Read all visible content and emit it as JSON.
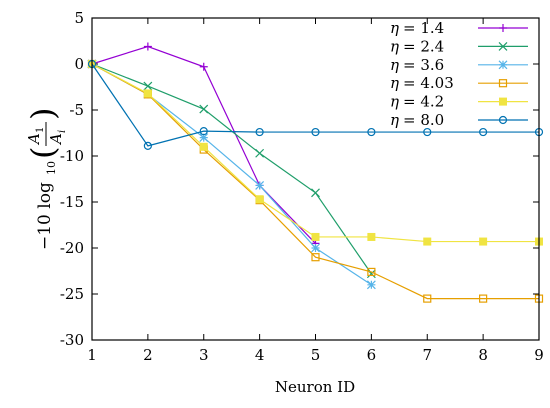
{
  "chart_data": {
    "type": "line",
    "title": "",
    "xlabel": "Neuron ID",
    "ylabel": {
      "prefix": "−10 log",
      "subscript": "10",
      "numerator": "A",
      "numerator_sub": "1",
      "denominator": "A",
      "denominator_sub": "i"
    },
    "x": [
      1,
      2,
      3,
      4,
      5,
      6,
      7,
      8,
      9
    ],
    "xlim": [
      1,
      9
    ],
    "ylim": [
      -30,
      5
    ],
    "xticks": [
      "1",
      "2",
      "3",
      "4",
      "5",
      "6",
      "7",
      "8",
      "9"
    ],
    "yticks": [
      "5",
      "0",
      "-5",
      "-10",
      "-15",
      "-20",
      "-25",
      "-30"
    ],
    "ytick_values": [
      5,
      0,
      -5,
      -10,
      -15,
      -20,
      -25,
      -30
    ],
    "grid": false,
    "legend_position": "top-right",
    "legend_symbol": "η",
    "series": [
      {
        "name": "= 1.4",
        "color": "#9400d3",
        "marker": "plus",
        "x": [
          1,
          2,
          3,
          4,
          5
        ],
        "y": [
          0,
          1.9,
          -0.3,
          -13.2,
          -19.5
        ]
      },
      {
        "name": "= 2.4",
        "color": "#1f9e6a",
        "marker": "cross",
        "x": [
          1,
          2,
          3,
          4,
          5,
          6
        ],
        "y": [
          0,
          -2.4,
          -4.9,
          -9.7,
          -14.0,
          -22.8
        ]
      },
      {
        "name": "= 3.6",
        "color": "#56b4e9",
        "marker": "star",
        "x": [
          1,
          2,
          3,
          4,
          5,
          6
        ],
        "y": [
          0,
          -3.3,
          -8.0,
          -13.2,
          -20.0,
          -24.0
        ]
      },
      {
        "name": "= 4.03",
        "color": "#e69f00",
        "marker": "square",
        "x": [
          1,
          2,
          3,
          4,
          5,
          6,
          7,
          8,
          9
        ],
        "y": [
          0,
          -3.3,
          -9.3,
          -14.8,
          -21.0,
          -22.6,
          -25.5,
          -25.5,
          -25.5
        ]
      },
      {
        "name": "= 4.2",
        "color": "#f0e442",
        "marker": "filled-square",
        "x": [
          1,
          2,
          3,
          4,
          5,
          6,
          7,
          8,
          9
        ],
        "y": [
          0,
          -3.2,
          -9.0,
          -14.7,
          -18.8,
          -18.8,
          -19.3,
          -19.3,
          -19.3
        ]
      },
      {
        "name": "= 8.0",
        "color": "#0072b2",
        "marker": "circle",
        "x": [
          1,
          2,
          3,
          4,
          5,
          6,
          7,
          8,
          9
        ],
        "y": [
          0,
          -8.9,
          -7.3,
          -7.4,
          -7.4,
          -7.4,
          -7.4,
          -7.4,
          -7.4
        ]
      }
    ]
  }
}
